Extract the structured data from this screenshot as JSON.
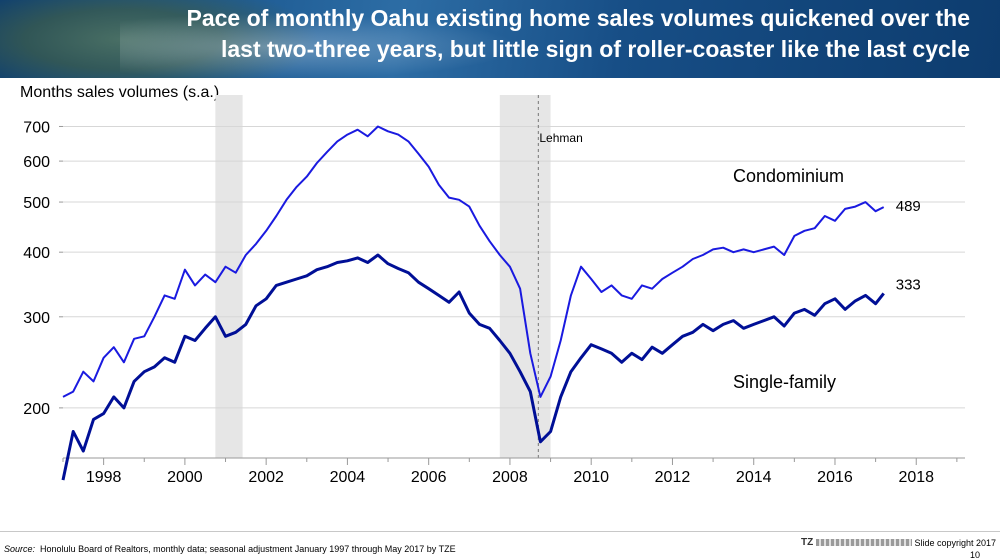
{
  "header": {
    "title_line1": "Pace of monthly Oahu existing home sales volumes quickened over the",
    "title_line2": "last two-three years, but little sign of roller-coaster like the last cycle"
  },
  "chart_data": {
    "type": "line",
    "ylabel": "Months sales volumes (s.a.)",
    "yscale": "log",
    "ylim": [
      160,
      760
    ],
    "xlim": [
      1997.0,
      2019.2
    ],
    "yticks": [
      200,
      300,
      400,
      500,
      600,
      700
    ],
    "xticks": [
      1998,
      2000,
      2002,
      2004,
      2006,
      2008,
      2010,
      2012,
      2014,
      2016,
      2018
    ],
    "shaded_periods": [
      [
        2000.75,
        2001.42
      ],
      [
        2007.75,
        2009.0
      ]
    ],
    "event_marker": {
      "x": 2008.7,
      "label": "Lehman"
    },
    "series": [
      {
        "name": "Condominium",
        "color": "#1a1ae0",
        "end_label": "489",
        "points": [
          [
            1997.0,
            210
          ],
          [
            1997.25,
            215
          ],
          [
            1997.5,
            235
          ],
          [
            1997.75,
            225
          ],
          [
            1998.0,
            250
          ],
          [
            1998.25,
            262
          ],
          [
            1998.5,
            245
          ],
          [
            1998.75,
            272
          ],
          [
            1999.0,
            275
          ],
          [
            1999.25,
            300
          ],
          [
            1999.5,
            330
          ],
          [
            1999.75,
            325
          ],
          [
            2000.0,
            370
          ],
          [
            2000.25,
            345
          ],
          [
            2000.5,
            362
          ],
          [
            2000.75,
            350
          ],
          [
            2001.0,
            375
          ],
          [
            2001.25,
            365
          ],
          [
            2001.5,
            395
          ],
          [
            2001.75,
            415
          ],
          [
            2002.0,
            440
          ],
          [
            2002.25,
            470
          ],
          [
            2002.5,
            505
          ],
          [
            2002.75,
            535
          ],
          [
            2003.0,
            560
          ],
          [
            2003.25,
            595
          ],
          [
            2003.5,
            625
          ],
          [
            2003.75,
            655
          ],
          [
            2004.0,
            675
          ],
          [
            2004.25,
            690
          ],
          [
            2004.5,
            670
          ],
          [
            2004.75,
            700
          ],
          [
            2005.0,
            685
          ],
          [
            2005.25,
            675
          ],
          [
            2005.5,
            655
          ],
          [
            2005.75,
            620
          ],
          [
            2006.0,
            585
          ],
          [
            2006.25,
            540
          ],
          [
            2006.5,
            510
          ],
          [
            2006.75,
            505
          ],
          [
            2007.0,
            490
          ],
          [
            2007.25,
            450
          ],
          [
            2007.5,
            420
          ],
          [
            2007.75,
            395
          ],
          [
            2008.0,
            375
          ],
          [
            2008.25,
            340
          ],
          [
            2008.5,
            255
          ],
          [
            2008.75,
            210
          ],
          [
            2009.0,
            230
          ],
          [
            2009.25,
            270
          ],
          [
            2009.5,
            330
          ],
          [
            2009.75,
            375
          ],
          [
            2010.0,
            355
          ],
          [
            2010.25,
            335
          ],
          [
            2010.5,
            345
          ],
          [
            2010.75,
            330
          ],
          [
            2011.0,
            325
          ],
          [
            2011.25,
            345
          ],
          [
            2011.5,
            340
          ],
          [
            2011.75,
            355
          ],
          [
            2012.0,
            365
          ],
          [
            2012.25,
            375
          ],
          [
            2012.5,
            388
          ],
          [
            2012.75,
            395
          ],
          [
            2013.0,
            405
          ],
          [
            2013.25,
            408
          ],
          [
            2013.5,
            400
          ],
          [
            2013.75,
            405
          ],
          [
            2014.0,
            400
          ],
          [
            2014.25,
            405
          ],
          [
            2014.5,
            410
          ],
          [
            2014.75,
            395
          ],
          [
            2015.0,
            430
          ],
          [
            2015.25,
            440
          ],
          [
            2015.5,
            445
          ],
          [
            2015.75,
            470
          ],
          [
            2016.0,
            460
          ],
          [
            2016.25,
            485
          ],
          [
            2016.5,
            490
          ],
          [
            2016.75,
            500
          ],
          [
            2017.0,
            480
          ],
          [
            2017.2,
            489
          ]
        ]
      },
      {
        "name": "Single-family",
        "color": "#000f96",
        "end_label": "333",
        "points": [
          [
            1997.0,
            145
          ],
          [
            1997.25,
            180
          ],
          [
            1997.5,
            165
          ],
          [
            1997.75,
            190
          ],
          [
            1998.0,
            195
          ],
          [
            1998.25,
            210
          ],
          [
            1998.5,
            200
          ],
          [
            1998.75,
            225
          ],
          [
            1999.0,
            235
          ],
          [
            1999.25,
            240
          ],
          [
            1999.5,
            250
          ],
          [
            1999.75,
            245
          ],
          [
            2000.0,
            275
          ],
          [
            2000.25,
            270
          ],
          [
            2000.5,
            285
          ],
          [
            2000.75,
            300
          ],
          [
            2001.0,
            275
          ],
          [
            2001.25,
            280
          ],
          [
            2001.5,
            290
          ],
          [
            2001.75,
            315
          ],
          [
            2002.0,
            325
          ],
          [
            2002.25,
            345
          ],
          [
            2002.5,
            350
          ],
          [
            2002.75,
            355
          ],
          [
            2003.0,
            360
          ],
          [
            2003.25,
            370
          ],
          [
            2003.5,
            375
          ],
          [
            2003.75,
            382
          ],
          [
            2004.0,
            385
          ],
          [
            2004.25,
            390
          ],
          [
            2004.5,
            382
          ],
          [
            2004.75,
            395
          ],
          [
            2005.0,
            380
          ],
          [
            2005.25,
            372
          ],
          [
            2005.5,
            365
          ],
          [
            2005.75,
            350
          ],
          [
            2006.0,
            340
          ],
          [
            2006.25,
            330
          ],
          [
            2006.5,
            320
          ],
          [
            2006.75,
            335
          ],
          [
            2007.0,
            305
          ],
          [
            2007.25,
            290
          ],
          [
            2007.5,
            285
          ],
          [
            2007.75,
            270
          ],
          [
            2008.0,
            255
          ],
          [
            2008.25,
            235
          ],
          [
            2008.5,
            215
          ],
          [
            2008.75,
            172
          ],
          [
            2009.0,
            180
          ],
          [
            2009.25,
            210
          ],
          [
            2009.5,
            235
          ],
          [
            2009.75,
            250
          ],
          [
            2010.0,
            265
          ],
          [
            2010.25,
            260
          ],
          [
            2010.5,
            255
          ],
          [
            2010.75,
            245
          ],
          [
            2011.0,
            255
          ],
          [
            2011.25,
            248
          ],
          [
            2011.5,
            262
          ],
          [
            2011.75,
            255
          ],
          [
            2012.0,
            265
          ],
          [
            2012.25,
            275
          ],
          [
            2012.5,
            280
          ],
          [
            2012.75,
            290
          ],
          [
            2013.0,
            282
          ],
          [
            2013.25,
            290
          ],
          [
            2013.5,
            295
          ],
          [
            2013.75,
            285
          ],
          [
            2014.0,
            290
          ],
          [
            2014.25,
            295
          ],
          [
            2014.5,
            300
          ],
          [
            2014.75,
            288
          ],
          [
            2015.0,
            305
          ],
          [
            2015.25,
            310
          ],
          [
            2015.5,
            302
          ],
          [
            2015.75,
            318
          ],
          [
            2016.0,
            325
          ],
          [
            2016.25,
            310
          ],
          [
            2016.5,
            322
          ],
          [
            2016.75,
            330
          ],
          [
            2017.0,
            318
          ],
          [
            2017.2,
            333
          ]
        ]
      }
    ],
    "series_labels": [
      "Condominium",
      "Single-family"
    ]
  },
  "footer": {
    "source_label": "Source:",
    "source_text": "Honolulu Board of Realtors, monthly data; seasonal adjustment January 1997 through May 2017 by TZE",
    "logo_text": "TZ",
    "copyright": "Slide copyright 2017",
    "page_number": "10"
  },
  "colors": {
    "condo": "#1a1ae0",
    "single_family": "#000f96",
    "shade": "#e6e6e6",
    "header_bg": "#1d5a92"
  }
}
